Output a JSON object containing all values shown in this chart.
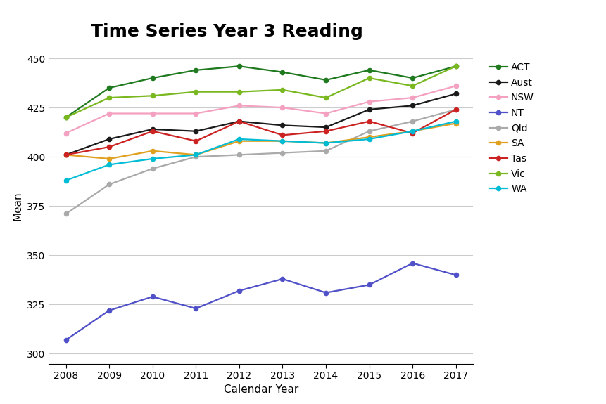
{
  "title": "Time Series Year 3 Reading",
  "xlabel": "Calendar Year",
  "ylabel": "Mean",
  "years": [
    2008,
    2009,
    2010,
    2011,
    2012,
    2013,
    2014,
    2015,
    2016,
    2017
  ],
  "series": {
    "ACT": {
      "values": [
        420,
        435,
        440,
        444,
        446,
        443,
        439,
        444,
        440,
        446
      ],
      "color": "#1f7a1f",
      "marker": "o"
    },
    "Aust": {
      "values": [
        401,
        409,
        414,
        413,
        418,
        416,
        415,
        424,
        426,
        432
      ],
      "color": "#1a1a1a",
      "marker": "o"
    },
    "NSW": {
      "values": [
        412,
        422,
        422,
        422,
        426,
        425,
        422,
        428,
        430,
        436
      ],
      "color": "#f4a0c0",
      "marker": "o"
    },
    "NT": {
      "values": [
        307,
        322,
        329,
        323,
        332,
        338,
        331,
        335,
        346,
        340
      ],
      "color": "#5050c8",
      "marker": "o"
    },
    "Qld": {
      "values": [
        371,
        386,
        394,
        400,
        401,
        402,
        403,
        413,
        418,
        424
      ],
      "color": "#aaaaaa",
      "marker": "o"
    },
    "SA": {
      "values": [
        401,
        399,
        403,
        401,
        408,
        408,
        407,
        410,
        413,
        417
      ],
      "color": "#e0a020",
      "marker": "o"
    },
    "Tas": {
      "values": [
        401,
        405,
        413,
        408,
        418,
        411,
        413,
        418,
        412,
        424
      ],
      "color": "#cc2222",
      "marker": "o"
    },
    "Vic": {
      "values": [
        420,
        430,
        431,
        433,
        433,
        434,
        430,
        440,
        436,
        446
      ],
      "color": "#7ab820",
      "marker": "o"
    },
    "WA": {
      "values": [
        388,
        396,
        399,
        401,
        409,
        408,
        407,
        409,
        413,
        418
      ],
      "color": "#00bcd4",
      "marker": "o"
    }
  },
  "ylim": [
    295,
    455
  ],
  "yticks": [
    300,
    325,
    350,
    375,
    400,
    425,
    450
  ],
  "xlim": [
    2007.6,
    2017.4
  ],
  "legend_order": [
    "ACT",
    "Aust",
    "NSW",
    "NT",
    "Qld",
    "SA",
    "Tas",
    "Vic",
    "WA"
  ],
  "background_color": "#ffffff",
  "grid_color": "#cccccc",
  "title_fontsize": 18,
  "axis_label_fontsize": 11,
  "tick_fontsize": 10,
  "legend_fontsize": 10,
  "line_width": 1.6,
  "marker_size": 4.5
}
